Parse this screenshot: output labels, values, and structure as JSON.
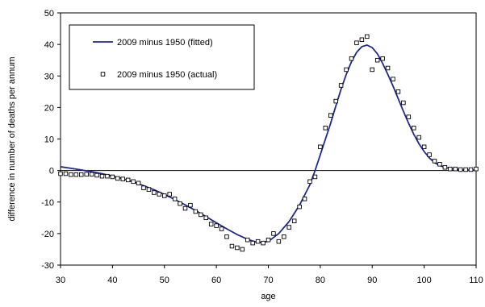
{
  "chart_data": {
    "type": "scatter",
    "xlabel": "age",
    "ylabel": "difference in number of deaths per annum",
    "xlim": [
      30,
      110
    ],
    "ylim": [
      -30,
      50
    ],
    "x_ticks": [
      "30",
      "40",
      "50",
      "60",
      "70",
      "80",
      "90",
      "100",
      "110"
    ],
    "y_ticks": [
      "50",
      "40",
      "30",
      "20",
      "10",
      "0",
      "-10",
      "-20",
      "-30"
    ],
    "grid": false,
    "legend_position": "top-left",
    "colors": {
      "fitted": "#1f2a8c",
      "actual_marker": "#000000",
      "zero_line": "#000000"
    },
    "series": [
      {
        "name": "2009 minus 1950 (fitted)",
        "style": "line",
        "x": [
          30,
          32,
          34,
          36,
          38,
          40,
          42,
          44,
          46,
          48,
          50,
          52,
          54,
          56,
          58,
          60,
          62,
          64,
          66,
          68,
          70,
          72,
          74,
          76,
          78,
          79,
          80,
          81,
          82,
          83,
          84,
          85,
          86,
          87,
          88,
          89,
          90,
          91,
          92,
          93,
          94,
          95,
          96,
          97,
          98,
          99,
          100,
          101,
          102,
          103,
          104,
          105,
          106,
          108,
          110
        ],
        "y": [
          1.2,
          0.7,
          0.2,
          -0.4,
          -1.0,
          -1.8,
          -2.6,
          -3.6,
          -4.8,
          -6.1,
          -7.6,
          -9.2,
          -10.9,
          -12.7,
          -14.6,
          -16.6,
          -18.5,
          -20.3,
          -21.8,
          -22.9,
          -22.5,
          -20.0,
          -16.2,
          -11.0,
          -4.5,
          0.0,
          5.0,
          10.0,
          15.0,
          20.5,
          25.8,
          30.5,
          34.5,
          37.5,
          39.3,
          39.8,
          39.0,
          37.0,
          34.0,
          30.5,
          26.8,
          22.8,
          18.8,
          15.0,
          11.5,
          8.5,
          6.0,
          4.0,
          2.5,
          1.6,
          1.0,
          0.6,
          0.4,
          0.2,
          0.1
        ]
      },
      {
        "name": "2009 minus 1950 (actual)",
        "style": "markers",
        "x": [
          30,
          31,
          32,
          33,
          34,
          35,
          36,
          37,
          38,
          39,
          40,
          41,
          42,
          43,
          44,
          45,
          46,
          47,
          48,
          49,
          50,
          51,
          52,
          53,
          54,
          55,
          56,
          57,
          58,
          59,
          60,
          61,
          62,
          63,
          64,
          65,
          66,
          67,
          68,
          69,
          70,
          71,
          72,
          73,
          74,
          75,
          76,
          77,
          78,
          79,
          80,
          81,
          82,
          83,
          84,
          85,
          86,
          87,
          88,
          89,
          90,
          91,
          92,
          93,
          94,
          95,
          96,
          97,
          98,
          99,
          100,
          101,
          102,
          103,
          104,
          105,
          106,
          107,
          108,
          109,
          110
        ],
        "y": [
          -1.0,
          -1.0,
          -1.3,
          -1.3,
          -1.3,
          -1.2,
          -1.2,
          -1.5,
          -1.8,
          -1.8,
          -2.0,
          -2.5,
          -2.7,
          -3.0,
          -3.5,
          -4.0,
          -5.5,
          -6.0,
          -7.0,
          -7.5,
          -8.0,
          -7.5,
          -9.0,
          -10.5,
          -12.0,
          -11.0,
          -13.0,
          -14.0,
          -15.0,
          -17.0,
          -17.5,
          -18.5,
          -21.0,
          -24.0,
          -24.5,
          -25.0,
          -22.0,
          -23.0,
          -22.5,
          -23.0,
          -22.0,
          -20.0,
          -22.5,
          -21.0,
          -18.0,
          -16.0,
          -11.5,
          -9.0,
          -3.5,
          -2.0,
          7.5,
          13.5,
          17.5,
          22.0,
          27.0,
          32.0,
          35.5,
          40.5,
          41.5,
          42.5,
          32.0,
          35.0,
          35.5,
          32.5,
          29.0,
          25.0,
          21.5,
          17.0,
          13.5,
          10.5,
          7.5,
          5.0,
          3.0,
          2.0,
          1.0,
          0.5,
          0.5,
          0.3,
          0.3,
          0.3,
          0.5
        ]
      }
    ]
  }
}
